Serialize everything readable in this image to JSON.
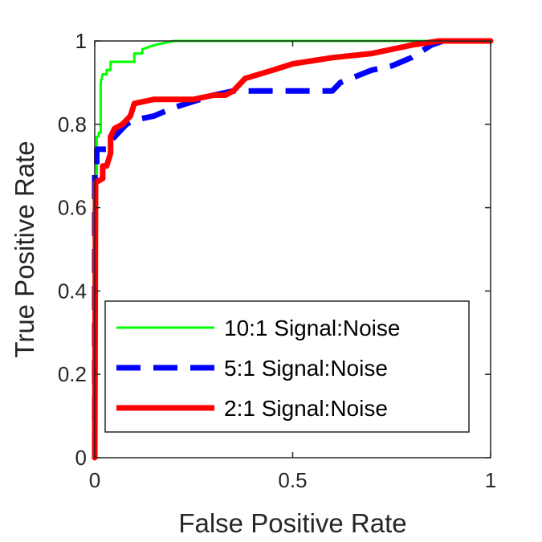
{
  "chart_data": {
    "type": "line",
    "title": "",
    "xlabel": "False Positive Rate",
    "ylabel": "True Positive Rate",
    "xlim": [
      0,
      1
    ],
    "ylim": [
      0,
      1
    ],
    "xticks": [
      0,
      0.5,
      1
    ],
    "xtick_labels": [
      "0",
      "0.5",
      "1"
    ],
    "yticks": [
      0,
      0.2,
      0.4,
      0.6,
      0.8,
      1
    ],
    "ytick_labels": [
      "0",
      "0.2",
      "0.4",
      "0.6",
      "0.8",
      "1"
    ],
    "grid": false,
    "legend_position": "bottom-left",
    "series": [
      {
        "name": "10:1 Signal:Noise",
        "color": "#00ff00",
        "style": "solid",
        "points": [
          [
            0,
            0
          ],
          [
            0,
            0.67
          ],
          [
            0.005,
            0.67
          ],
          [
            0.005,
            0.77
          ],
          [
            0.01,
            0.77
          ],
          [
            0.01,
            0.78
          ],
          [
            0.015,
            0.78
          ],
          [
            0.015,
            0.9
          ],
          [
            0.02,
            0.92
          ],
          [
            0.03,
            0.92
          ],
          [
            0.03,
            0.93
          ],
          [
            0.04,
            0.93
          ],
          [
            0.04,
            0.95
          ],
          [
            0.1,
            0.95
          ],
          [
            0.1,
            0.97
          ],
          [
            0.12,
            0.97
          ],
          [
            0.12,
            0.98
          ],
          [
            0.15,
            0.99
          ],
          [
            0.2,
            1.0
          ],
          [
            0.4,
            1.0
          ],
          [
            0.6,
            1.0
          ],
          [
            0.65,
            1.0
          ],
          [
            0.7,
            1.0
          ],
          [
            1.0,
            1.0
          ]
        ]
      },
      {
        "name": "5:1 Signal:Noise",
        "color": "#0000ff",
        "style": "dashed",
        "points": [
          [
            0,
            0
          ],
          [
            0,
            0.68
          ],
          [
            0.005,
            0.68
          ],
          [
            0.005,
            0.74
          ],
          [
            0.03,
            0.74
          ],
          [
            0.04,
            0.76
          ],
          [
            0.05,
            0.77
          ],
          [
            0.06,
            0.78
          ],
          [
            0.07,
            0.79
          ],
          [
            0.08,
            0.8
          ],
          [
            0.1,
            0.81
          ],
          [
            0.15,
            0.82
          ],
          [
            0.2,
            0.84
          ],
          [
            0.3,
            0.87
          ],
          [
            0.35,
            0.88
          ],
          [
            0.4,
            0.88
          ],
          [
            0.5,
            0.88
          ],
          [
            0.55,
            0.88
          ],
          [
            0.6,
            0.88
          ],
          [
            0.62,
            0.9
          ],
          [
            0.7,
            0.93
          ],
          [
            0.75,
            0.94
          ],
          [
            0.8,
            0.96
          ],
          [
            0.85,
            0.99
          ],
          [
            0.88,
            1.0
          ],
          [
            1.0,
            1.0
          ]
        ]
      },
      {
        "name": "2:1 Signal:Noise",
        "color": "#ff0000",
        "style": "solid",
        "points": [
          [
            0,
            0
          ],
          [
            0.002,
            0.66
          ],
          [
            0.02,
            0.67
          ],
          [
            0.02,
            0.7
          ],
          [
            0.03,
            0.7
          ],
          [
            0.04,
            0.73
          ],
          [
            0.04,
            0.77
          ],
          [
            0.05,
            0.79
          ],
          [
            0.07,
            0.8
          ],
          [
            0.08,
            0.81
          ],
          [
            0.09,
            0.82
          ],
          [
            0.1,
            0.85
          ],
          [
            0.15,
            0.86
          ],
          [
            0.25,
            0.86
          ],
          [
            0.3,
            0.87
          ],
          [
            0.33,
            0.87
          ],
          [
            0.35,
            0.88
          ],
          [
            0.38,
            0.91
          ],
          [
            0.45,
            0.93
          ],
          [
            0.5,
            0.945
          ],
          [
            0.6,
            0.96
          ],
          [
            0.7,
            0.97
          ],
          [
            0.75,
            0.98
          ],
          [
            0.8,
            0.99
          ],
          [
            0.87,
            1.0
          ],
          [
            1.0,
            1.0
          ]
        ]
      }
    ]
  }
}
